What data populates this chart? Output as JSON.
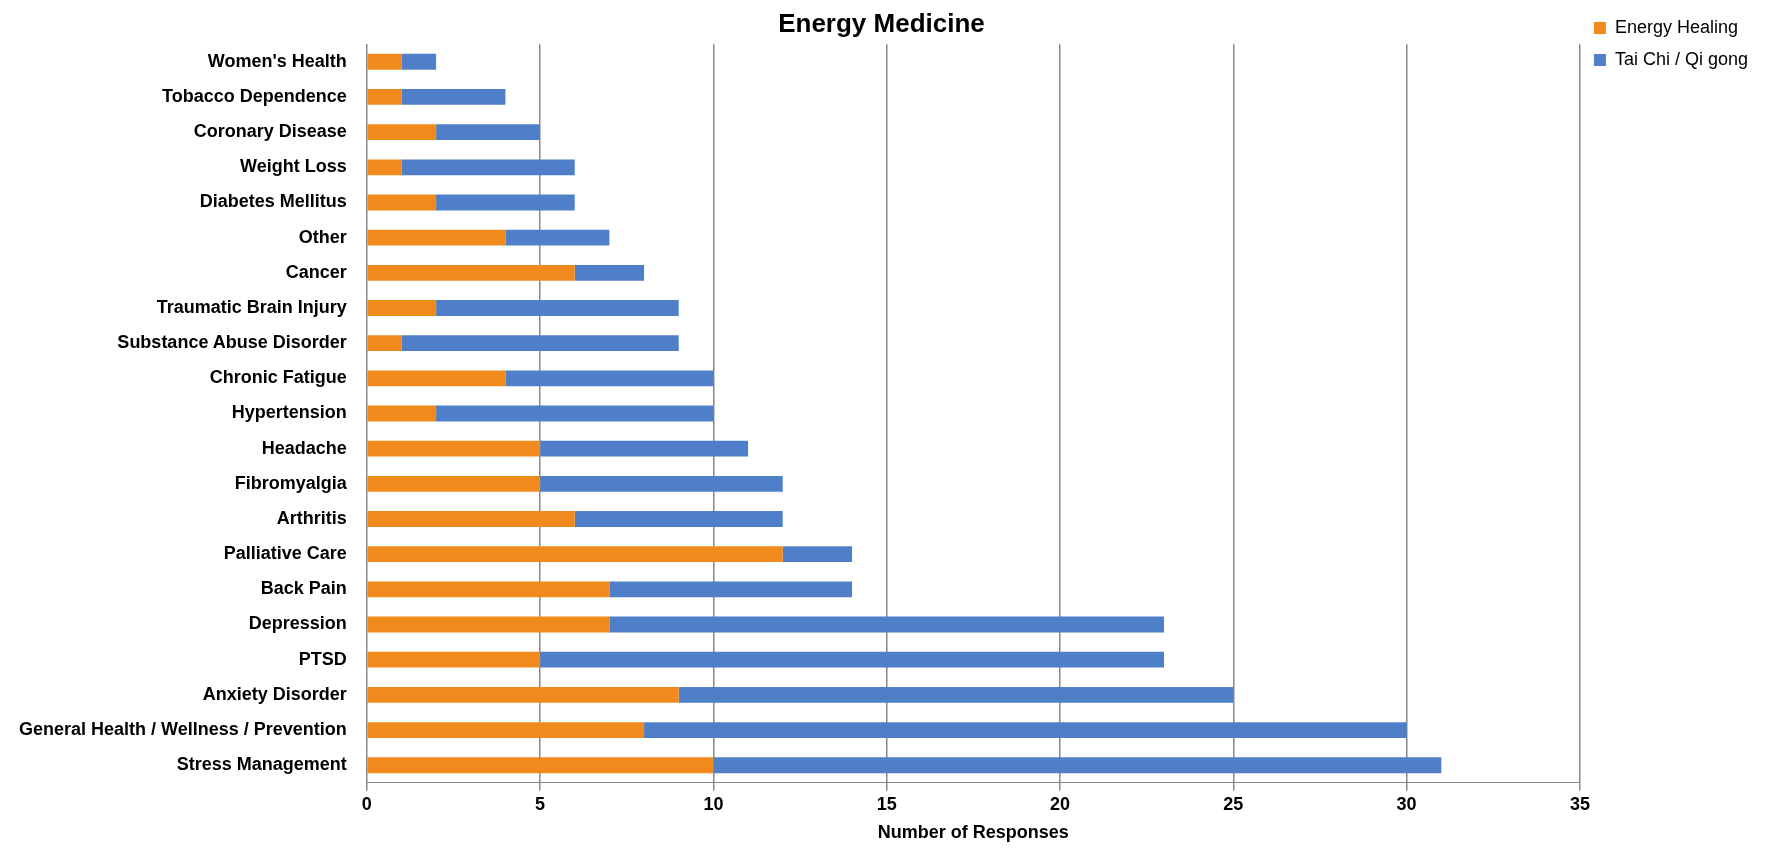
{
  "chart_data": {
    "type": "bar",
    "orientation": "horizontal",
    "stacked": true,
    "title": "Energy Medicine",
    "xlabel": "Number of Responses",
    "categories": [
      "Women's Health",
      "Tobacco Dependence",
      "Coronary Disease",
      "Weight Loss",
      "Diabetes Mellitus",
      "Other",
      "Cancer",
      "Traumatic Brain Injury",
      "Substance Abuse Disorder",
      "Chronic Fatigue",
      "Hypertension",
      "Headache",
      "Fibromyalgia",
      "Arthritis",
      "Palliative Care",
      "Back Pain",
      "Depression",
      "PTSD",
      "Anxiety Disorder",
      "General Health / Wellness / Prevention",
      "Stress Management"
    ],
    "series": [
      {
        "name": "Energy Healing",
        "color": "#f08a1c",
        "values": [
          1,
          1,
          2,
          1,
          2,
          4,
          6,
          2,
          1,
          4,
          2,
          5,
          5,
          6,
          12,
          7,
          7,
          5,
          9,
          8,
          10
        ]
      },
      {
        "name": "Tai Chi / Qi gong",
        "color": "#4f7fc8",
        "values": [
          1,
          3,
          3,
          5,
          4,
          3,
          2,
          7,
          8,
          6,
          8,
          6,
          7,
          6,
          2,
          7,
          16,
          18,
          16,
          22,
          21
        ]
      }
    ],
    "xlim": [
      0,
      35
    ],
    "xticks": [
      0,
      5,
      10,
      15,
      20,
      25,
      30,
      35
    ],
    "grid": "x",
    "legend": "top right"
  }
}
